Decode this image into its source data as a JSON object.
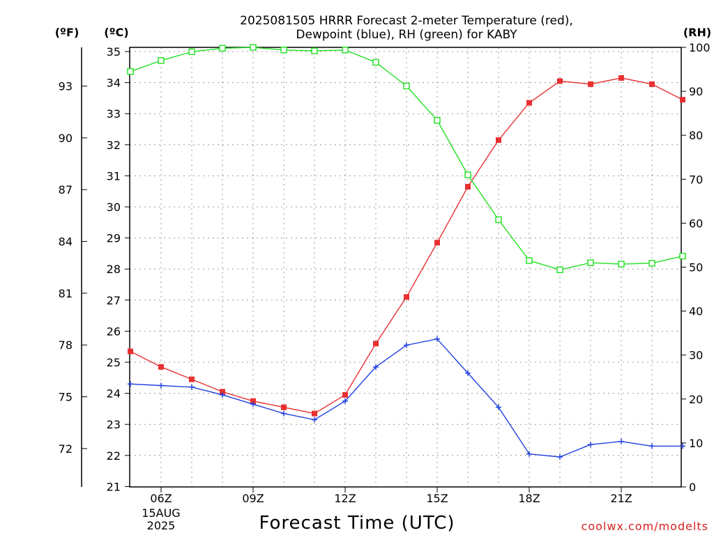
{
  "chart_data": {
    "type": "line",
    "title_line1": "2025081505 HRRR Forecast 2-meter Temperature (red),",
    "title_line2": "Dewpoint (blue), RH (green) for KABY",
    "left_f_unit": "(ºF)",
    "left_c_unit": "(ºC)",
    "right_unit": "(RH)",
    "xlabel": "Forecast Time (UTC)",
    "credit": "coolwx.com/modelts",
    "x_ticks": [
      {
        "hour": 6,
        "label": "06Z"
      },
      {
        "hour": 9,
        "label": "09Z"
      },
      {
        "hour": 12,
        "label": "12Z"
      },
      {
        "hour": 15,
        "label": "15Z"
      },
      {
        "hour": 18,
        "label": "18Z"
      },
      {
        "hour": 21,
        "label": "21Z"
      }
    ],
    "date_label_line1": "15AUG",
    "date_label_line2": "2025",
    "xlim": [
      5,
      23
    ],
    "ylim_c": [
      21,
      35
    ],
    "yticks_c": [
      21,
      22,
      23,
      24,
      25,
      26,
      27,
      28,
      29,
      30,
      31,
      32,
      33,
      34,
      35
    ],
    "yticks_f": [
      72,
      75,
      78,
      81,
      84,
      87,
      90,
      93
    ],
    "ylim_rh": [
      0,
      100
    ],
    "yticks_rh": [
      0,
      10,
      20,
      30,
      40,
      50,
      60,
      70,
      80,
      90,
      100
    ],
    "grid": true,
    "x": [
      5,
      6,
      7,
      8,
      9,
      10,
      11,
      12,
      13,
      14,
      15,
      16,
      17,
      18,
      19,
      20,
      21,
      22,
      23
    ],
    "series": [
      {
        "name": "Temperature",
        "axis": "C",
        "color": "#e83030",
        "marker": "filled-square",
        "values": [
          25.35,
          24.85,
          24.45,
          24.05,
          23.75,
          23.55,
          23.35,
          23.95,
          25.6,
          27.1,
          28.85,
          30.65,
          32.15,
          33.35,
          34.05,
          33.95,
          34.15,
          33.95,
          33.45
        ]
      },
      {
        "name": "Dewpoint",
        "axis": "C",
        "color": "#2040e0",
        "marker": "plus",
        "values": [
          24.3,
          24.25,
          24.2,
          23.95,
          23.65,
          23.35,
          23.15,
          23.75,
          24.85,
          25.55,
          25.75,
          24.65,
          23.55,
          22.05,
          21.95,
          22.35,
          22.45,
          22.3,
          22.3
        ]
      },
      {
        "name": "RH",
        "axis": "RH",
        "color": "#20e020",
        "marker": "open-square",
        "values": [
          94.5,
          97,
          99,
          99.8,
          100,
          99.4,
          99.2,
          99.4,
          96.6,
          91.2,
          83.4,
          71,
          60.8,
          51.5,
          49.4,
          51,
          50.7,
          50.9,
          52.5
        ]
      }
    ]
  }
}
